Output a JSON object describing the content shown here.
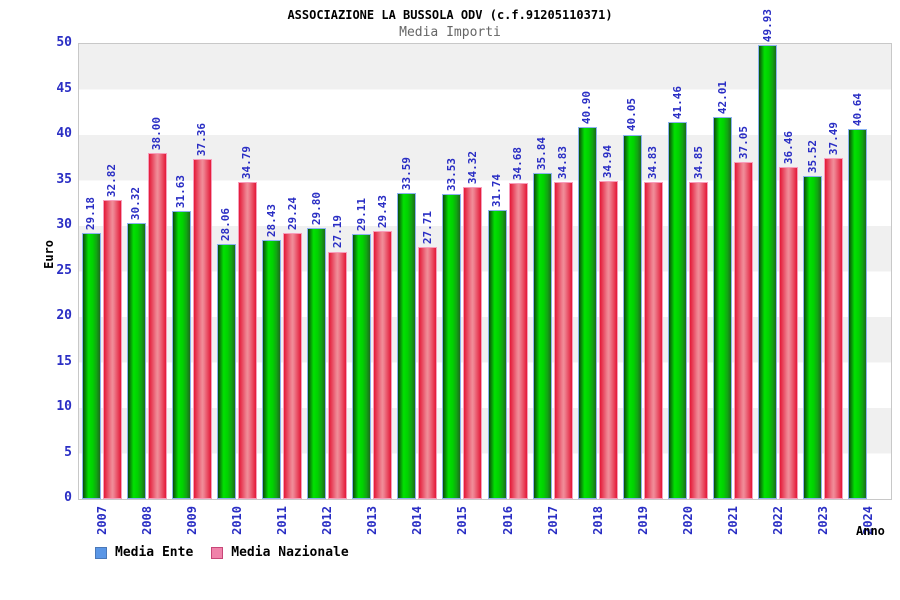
{
  "title": "ASSOCIAZIONE LA BUSSOLA ODV (c.f.91205110371)",
  "subtitle": "Media Importi",
  "y_axis": {
    "label": "Euro"
  },
  "x_axis": {
    "label": "Anno"
  },
  "legend": {
    "items": [
      {
        "label": "Media Ente",
        "swatch_color": "#5a96e6",
        "swatch_border": "#4a78b8"
      },
      {
        "label": "Media Nazionale",
        "swatch_color": "#f082aa",
        "swatch_border": "#c84678"
      }
    ]
  },
  "colors": {
    "label_blue": "#2a2ec4",
    "band_gray": "#f0f0f0",
    "band_white": "#ffffff",
    "plot_border": "#c8c8c8",
    "title_color": "#000000",
    "subtitle_color": "#666666",
    "bar_green_bright": "#02e002",
    "bar_green_dark": "#0c4a0c",
    "bar_green_outline": "#8cb2f0",
    "bar_red_edge": "#e41937",
    "bar_red_center": "#f18e99",
    "bar_red_outline": "#f79ebc"
  },
  "chart_data": {
    "type": "bar",
    "title": "ASSOCIAZIONE LA BUSSOLA ODV (c.f.91205110371)",
    "subtitle": "Media Importi",
    "xlabel": "Anno",
    "ylabel": "Euro",
    "ylim": [
      0,
      50
    ],
    "ytick_step": 5,
    "yticks": [
      0,
      5,
      10,
      15,
      20,
      25,
      30,
      35,
      40,
      45,
      50
    ],
    "grid": "alternating horizontal bands gray/white every 5 units",
    "legend_position": "bottom-left",
    "value_labels": "rotated 90deg above each bar, 2 decimals",
    "categories": [
      "2007",
      "2008",
      "2009",
      "2010",
      "2011",
      "2012",
      "2013",
      "2014",
      "2015",
      "2016",
      "2017",
      "2018",
      "2019",
      "2020",
      "2021",
      "2022",
      "2023",
      "2024"
    ],
    "series": [
      {
        "name": "Media Ente",
        "bar_style": "green gradient, light-blue outline",
        "values": [
          29.18,
          30.32,
          31.63,
          28.06,
          28.43,
          29.8,
          29.11,
          33.59,
          33.53,
          31.74,
          35.84,
          40.9,
          40.05,
          41.46,
          42.01,
          49.93,
          35.52,
          40.64
        ]
      },
      {
        "name": "Media Nazionale",
        "bar_style": "red/pink gradient, pink outline",
        "values": [
          32.82,
          38.0,
          37.36,
          34.79,
          29.24,
          27.19,
          29.43,
          27.71,
          34.32,
          34.68,
          34.83,
          34.94,
          34.83,
          34.85,
          37.05,
          36.46,
          37.49,
          null
        ]
      }
    ]
  }
}
